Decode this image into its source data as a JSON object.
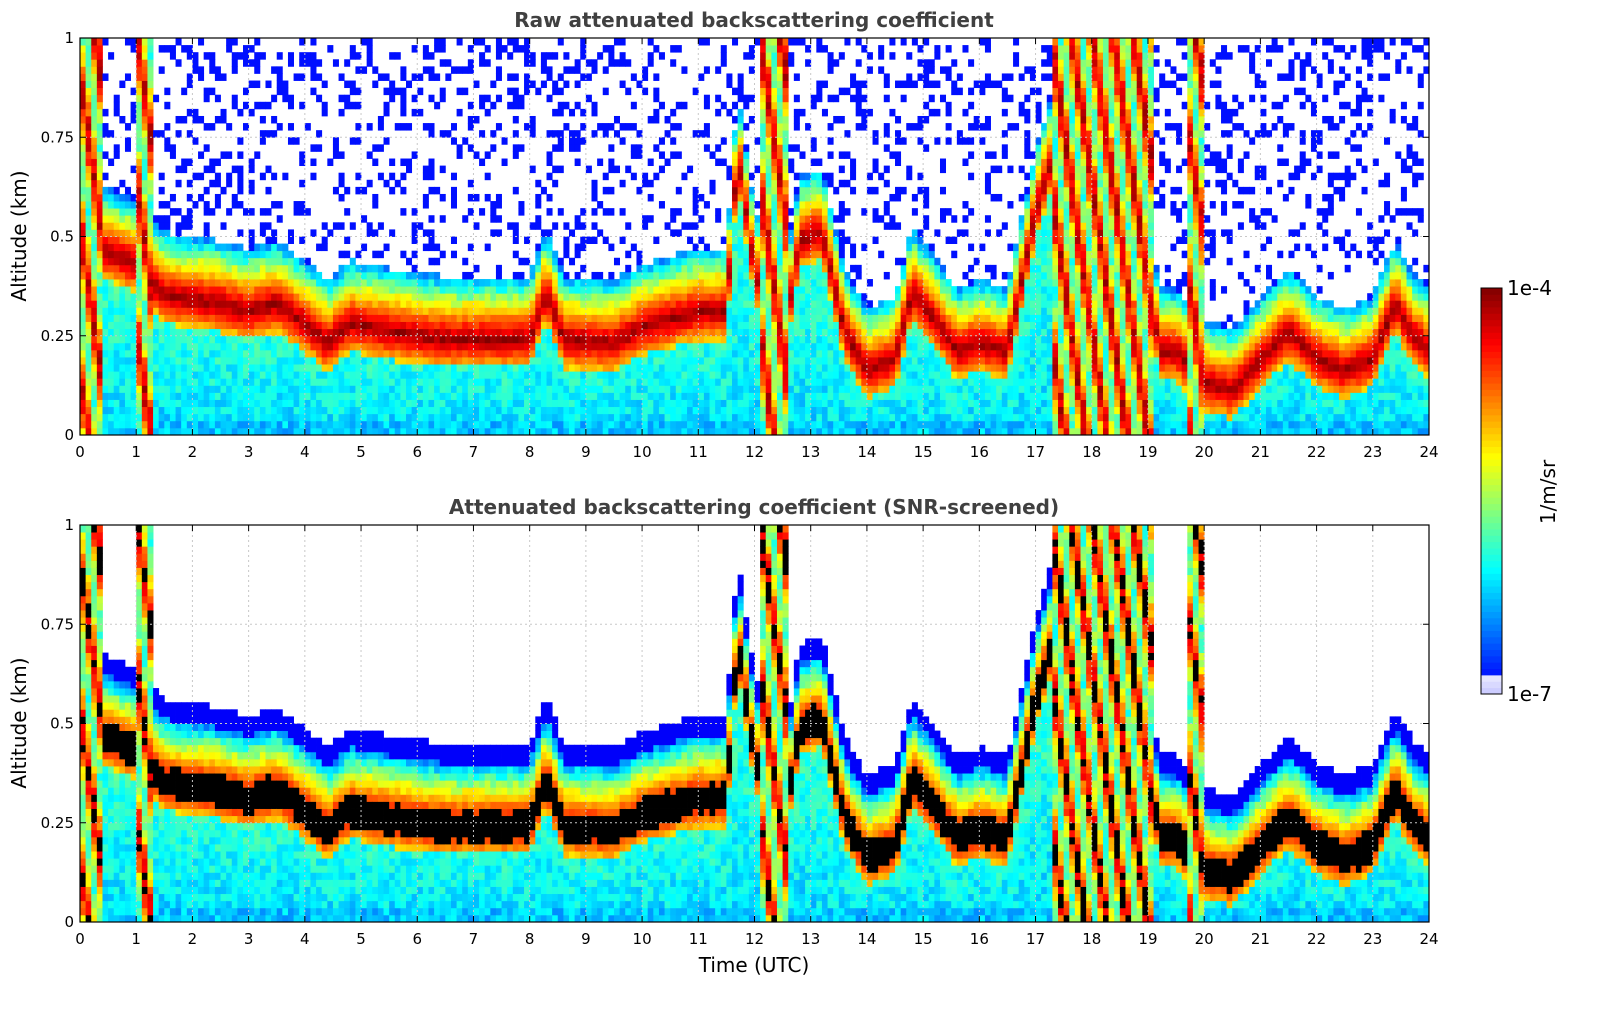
{
  "chart_data": [
    {
      "type": "heatmap",
      "title": "Raw attenuated backscattering coefficient",
      "xlabel": "",
      "ylabel": "Altitude (km)",
      "xlim": [
        0,
        24
      ],
      "ylim": [
        0,
        1
      ],
      "xticks": [
        "0",
        "1",
        "2",
        "3",
        "4",
        "5",
        "6",
        "7",
        "8",
        "9",
        "10",
        "11",
        "12",
        "13",
        "14",
        "15",
        "16",
        "17",
        "18",
        "19",
        "20",
        "21",
        "22",
        "23",
        "24"
      ],
      "yticks": [
        "0",
        "0.25",
        "0.5",
        "0.75",
        "1"
      ],
      "grid": true,
      "screened": false
    },
    {
      "type": "heatmap",
      "title": "Attenuated backscattering coefficient (SNR-screened)",
      "xlabel": "Time (UTC)",
      "ylabel": "Altitude (km)",
      "xlim": [
        0,
        24
      ],
      "ylim": [
        0,
        1
      ],
      "xticks": [
        "0",
        "1",
        "2",
        "3",
        "4",
        "5",
        "6",
        "7",
        "8",
        "9",
        "10",
        "11",
        "12",
        "13",
        "14",
        "15",
        "16",
        "17",
        "18",
        "19",
        "20",
        "21",
        "22",
        "23",
        "24"
      ],
      "yticks": [
        "0",
        "0.25",
        "0.5",
        "0.75",
        "1"
      ],
      "grid": true,
      "screened": true
    }
  ],
  "colorbar": {
    "label": "1/m/sr",
    "min_label": "1e-7",
    "max_label": "1e-4",
    "scale": "log",
    "colormap": "jet"
  },
  "layer_top_km": [
    [
      0.0,
      0.55
    ],
    [
      0.5,
      0.55
    ],
    [
      1.0,
      0.52
    ],
    [
      1.5,
      0.44
    ],
    [
      2.0,
      0.43
    ],
    [
      2.5,
      0.42
    ],
    [
      3.0,
      0.4
    ],
    [
      3.5,
      0.42
    ],
    [
      4.0,
      0.37
    ],
    [
      4.4,
      0.32
    ],
    [
      4.8,
      0.37
    ],
    [
      5.5,
      0.35
    ],
    [
      6.5,
      0.33
    ],
    [
      7.5,
      0.33
    ],
    [
      8.0,
      0.33
    ],
    [
      8.3,
      0.45
    ],
    [
      8.6,
      0.33
    ],
    [
      9.5,
      0.32
    ],
    [
      10.0,
      0.36
    ],
    [
      10.5,
      0.38
    ],
    [
      11.0,
      0.4
    ],
    [
      11.5,
      0.4
    ],
    [
      11.7,
      0.8
    ],
    [
      12.0,
      0.5
    ],
    [
      12.5,
      0.3
    ],
    [
      12.8,
      0.58
    ],
    [
      13.2,
      0.6
    ],
    [
      13.6,
      0.35
    ],
    [
      14.0,
      0.25
    ],
    [
      14.5,
      0.28
    ],
    [
      14.8,
      0.45
    ],
    [
      15.2,
      0.38
    ],
    [
      15.6,
      0.3
    ],
    [
      16.0,
      0.32
    ],
    [
      16.5,
      0.3
    ],
    [
      17.0,
      0.65
    ],
    [
      17.5,
      0.88
    ],
    [
      18.0,
      0.95
    ],
    [
      18.5,
      0.9
    ],
    [
      18.8,
      0.7
    ],
    [
      19.2,
      0.3
    ],
    [
      19.5,
      0.3
    ],
    [
      20.0,
      0.22
    ],
    [
      20.5,
      0.2
    ],
    [
      21.5,
      0.35
    ],
    [
      22.0,
      0.28
    ],
    [
      22.5,
      0.25
    ],
    [
      23.0,
      0.28
    ],
    [
      23.4,
      0.42
    ],
    [
      23.7,
      0.34
    ],
    [
      24.0,
      0.3
    ]
  ],
  "layer_depth_km": 0.16,
  "rain_periods_utc": [
    [
      0.0,
      0.4
    ],
    [
      1.0,
      1.3
    ],
    [
      12.1,
      12.6
    ],
    [
      17.3,
      19.1
    ],
    [
      19.7,
      20.0
    ]
  ],
  "colors": {
    "title": "#404040",
    "grid": "#c8c8c8",
    "background": "#ffffff",
    "saturated": "#000000"
  }
}
